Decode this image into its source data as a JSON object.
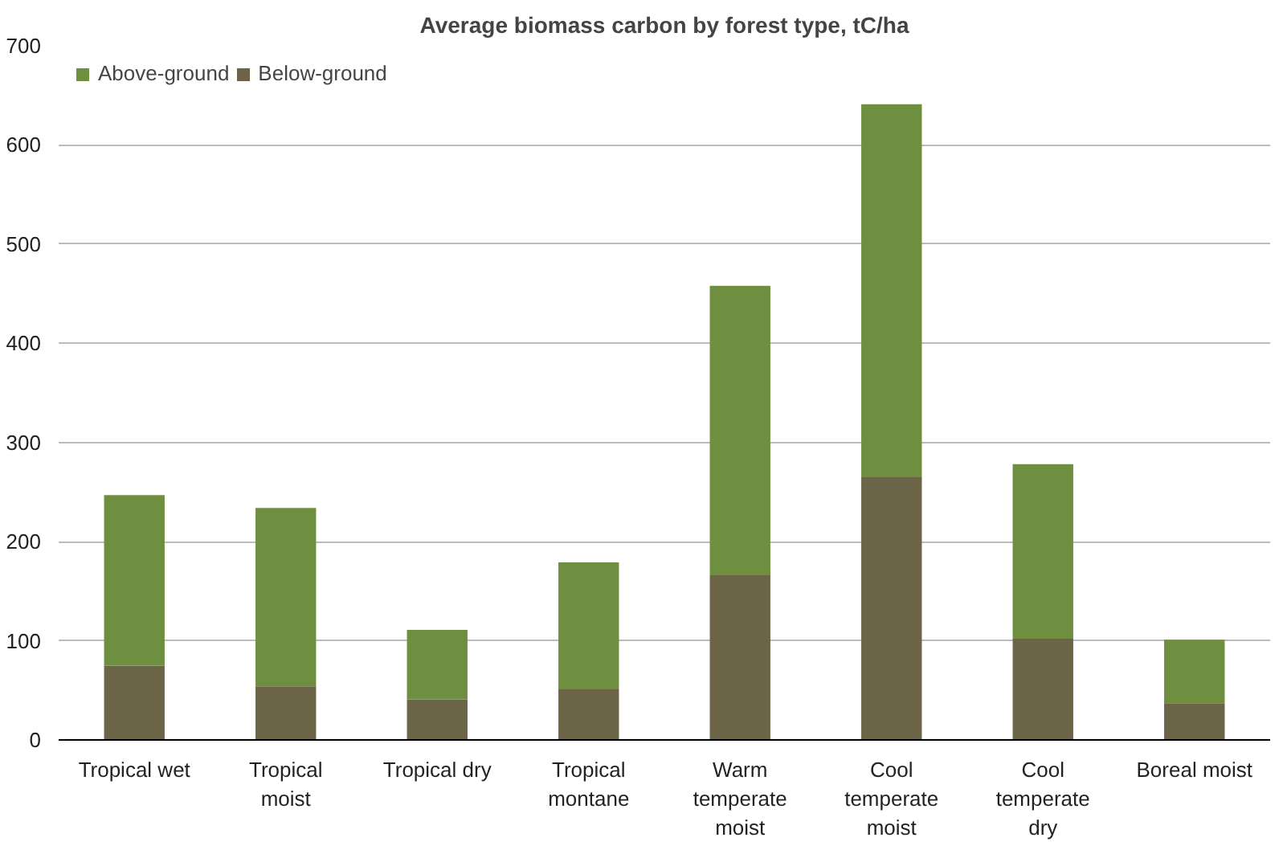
{
  "chart_data": {
    "type": "bar",
    "title": "Average biomass carbon by forest type, tC/ha",
    "stacked": true,
    "categories": [
      "Tropical wet",
      "Tropical moist",
      "Tropical dry",
      "Tropical montane",
      "Warm temperate moist",
      "Cool temperate moist",
      "Cool temperate dry",
      "Boreal moist"
    ],
    "series": [
      {
        "name": "Below-ground",
        "color": "#6b6447",
        "values": [
          75,
          54,
          41,
          51,
          166,
          265,
          102,
          37
        ]
      },
      {
        "name": "Above-ground",
        "color": "#6f8f40",
        "values": [
          172,
          180,
          70,
          128,
          292,
          376,
          176,
          64
        ]
      }
    ],
    "ylim": [
      0,
      700
    ],
    "yticks": [
      0,
      100,
      200,
      300,
      400,
      500,
      600,
      700
    ],
    "grid": "y",
    "legend": "top left"
  }
}
